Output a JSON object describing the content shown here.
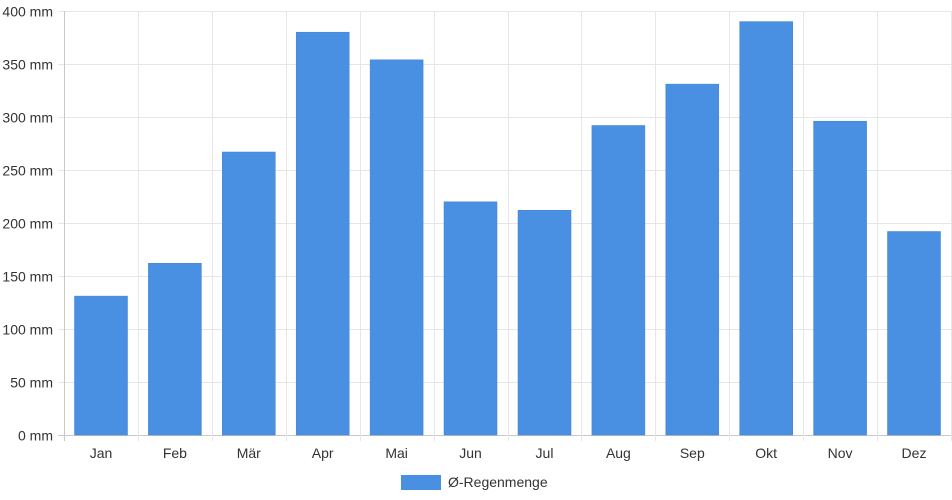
{
  "chart_data": {
    "type": "bar",
    "categories": [
      "Jan",
      "Feb",
      "Mär",
      "Apr",
      "Mai",
      "Jun",
      "Jul",
      "Aug",
      "Sep",
      "Okt",
      "Nov",
      "Dez"
    ],
    "series": [
      {
        "name": "Ø-Regenmenge",
        "values": [
          131,
          162,
          267,
          380,
          354,
          220,
          212,
          292,
          331,
          390,
          296,
          192
        ],
        "color": "#4a90e2"
      }
    ],
    "ylim": [
      0,
      400
    ],
    "yticks": [
      0,
      50,
      100,
      150,
      200,
      250,
      300,
      350,
      400
    ],
    "ytick_labels": [
      "0 mm",
      "50 mm",
      "100 mm",
      "150 mm",
      "200 mm",
      "250 mm",
      "300 mm",
      "350 mm",
      "400 mm"
    ],
    "grid": true,
    "legend_position": "bottom"
  }
}
